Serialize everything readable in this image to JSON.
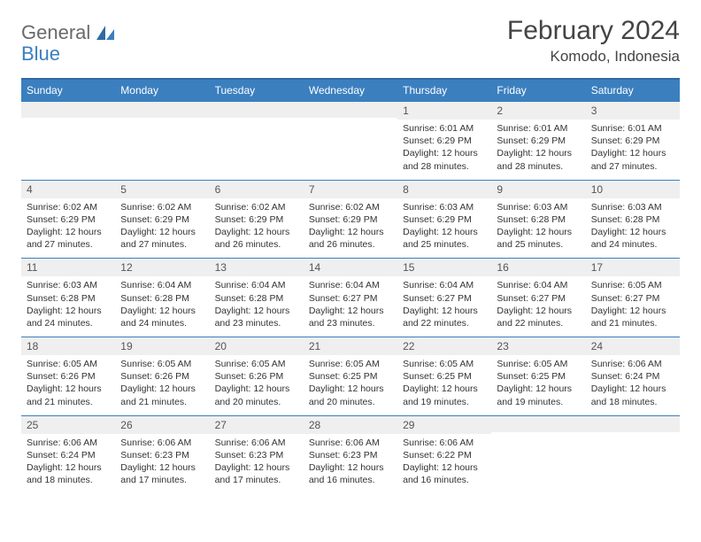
{
  "logo": {
    "text_general": "General",
    "text_blue": "Blue"
  },
  "title": "February 2024",
  "subtitle": "Komodo, Indonesia",
  "colors": {
    "header_bg": "#3b7fbf",
    "header_border_top": "#2f6aa3",
    "row_border": "#3b7fbf",
    "daynum_bg": "#efefef",
    "page_bg": "#ffffff",
    "text": "#333333",
    "title_text": "#444444",
    "logo_gray": "#6a6a6a",
    "logo_blue": "#3b7fbf"
  },
  "typography": {
    "title_fontsize": 30,
    "subtitle_fontsize": 17,
    "header_fontsize": 12,
    "daynum_fontsize": 12,
    "content_fontsize": 10.5,
    "font_family": "Arial"
  },
  "weekdays": [
    "Sunday",
    "Monday",
    "Tuesday",
    "Wednesday",
    "Thursday",
    "Friday",
    "Saturday"
  ],
  "weeks": [
    [
      {
        "day": "",
        "sunrise": "",
        "sunset": "",
        "daylight": ""
      },
      {
        "day": "",
        "sunrise": "",
        "sunset": "",
        "daylight": ""
      },
      {
        "day": "",
        "sunrise": "",
        "sunset": "",
        "daylight": ""
      },
      {
        "day": "",
        "sunrise": "",
        "sunset": "",
        "daylight": ""
      },
      {
        "day": "1",
        "sunrise": "Sunrise: 6:01 AM",
        "sunset": "Sunset: 6:29 PM",
        "daylight": "Daylight: 12 hours and 28 minutes."
      },
      {
        "day": "2",
        "sunrise": "Sunrise: 6:01 AM",
        "sunset": "Sunset: 6:29 PM",
        "daylight": "Daylight: 12 hours and 28 minutes."
      },
      {
        "day": "3",
        "sunrise": "Sunrise: 6:01 AM",
        "sunset": "Sunset: 6:29 PM",
        "daylight": "Daylight: 12 hours and 27 minutes."
      }
    ],
    [
      {
        "day": "4",
        "sunrise": "Sunrise: 6:02 AM",
        "sunset": "Sunset: 6:29 PM",
        "daylight": "Daylight: 12 hours and 27 minutes."
      },
      {
        "day": "5",
        "sunrise": "Sunrise: 6:02 AM",
        "sunset": "Sunset: 6:29 PM",
        "daylight": "Daylight: 12 hours and 27 minutes."
      },
      {
        "day": "6",
        "sunrise": "Sunrise: 6:02 AM",
        "sunset": "Sunset: 6:29 PM",
        "daylight": "Daylight: 12 hours and 26 minutes."
      },
      {
        "day": "7",
        "sunrise": "Sunrise: 6:02 AM",
        "sunset": "Sunset: 6:29 PM",
        "daylight": "Daylight: 12 hours and 26 minutes."
      },
      {
        "day": "8",
        "sunrise": "Sunrise: 6:03 AM",
        "sunset": "Sunset: 6:29 PM",
        "daylight": "Daylight: 12 hours and 25 minutes."
      },
      {
        "day": "9",
        "sunrise": "Sunrise: 6:03 AM",
        "sunset": "Sunset: 6:28 PM",
        "daylight": "Daylight: 12 hours and 25 minutes."
      },
      {
        "day": "10",
        "sunrise": "Sunrise: 6:03 AM",
        "sunset": "Sunset: 6:28 PM",
        "daylight": "Daylight: 12 hours and 24 minutes."
      }
    ],
    [
      {
        "day": "11",
        "sunrise": "Sunrise: 6:03 AM",
        "sunset": "Sunset: 6:28 PM",
        "daylight": "Daylight: 12 hours and 24 minutes."
      },
      {
        "day": "12",
        "sunrise": "Sunrise: 6:04 AM",
        "sunset": "Sunset: 6:28 PM",
        "daylight": "Daylight: 12 hours and 24 minutes."
      },
      {
        "day": "13",
        "sunrise": "Sunrise: 6:04 AM",
        "sunset": "Sunset: 6:28 PM",
        "daylight": "Daylight: 12 hours and 23 minutes."
      },
      {
        "day": "14",
        "sunrise": "Sunrise: 6:04 AM",
        "sunset": "Sunset: 6:27 PM",
        "daylight": "Daylight: 12 hours and 23 minutes."
      },
      {
        "day": "15",
        "sunrise": "Sunrise: 6:04 AM",
        "sunset": "Sunset: 6:27 PM",
        "daylight": "Daylight: 12 hours and 22 minutes."
      },
      {
        "day": "16",
        "sunrise": "Sunrise: 6:04 AM",
        "sunset": "Sunset: 6:27 PM",
        "daylight": "Daylight: 12 hours and 22 minutes."
      },
      {
        "day": "17",
        "sunrise": "Sunrise: 6:05 AM",
        "sunset": "Sunset: 6:27 PM",
        "daylight": "Daylight: 12 hours and 21 minutes."
      }
    ],
    [
      {
        "day": "18",
        "sunrise": "Sunrise: 6:05 AM",
        "sunset": "Sunset: 6:26 PM",
        "daylight": "Daylight: 12 hours and 21 minutes."
      },
      {
        "day": "19",
        "sunrise": "Sunrise: 6:05 AM",
        "sunset": "Sunset: 6:26 PM",
        "daylight": "Daylight: 12 hours and 21 minutes."
      },
      {
        "day": "20",
        "sunrise": "Sunrise: 6:05 AM",
        "sunset": "Sunset: 6:26 PM",
        "daylight": "Daylight: 12 hours and 20 minutes."
      },
      {
        "day": "21",
        "sunrise": "Sunrise: 6:05 AM",
        "sunset": "Sunset: 6:25 PM",
        "daylight": "Daylight: 12 hours and 20 minutes."
      },
      {
        "day": "22",
        "sunrise": "Sunrise: 6:05 AM",
        "sunset": "Sunset: 6:25 PM",
        "daylight": "Daylight: 12 hours and 19 minutes."
      },
      {
        "day": "23",
        "sunrise": "Sunrise: 6:05 AM",
        "sunset": "Sunset: 6:25 PM",
        "daylight": "Daylight: 12 hours and 19 minutes."
      },
      {
        "day": "24",
        "sunrise": "Sunrise: 6:06 AM",
        "sunset": "Sunset: 6:24 PM",
        "daylight": "Daylight: 12 hours and 18 minutes."
      }
    ],
    [
      {
        "day": "25",
        "sunrise": "Sunrise: 6:06 AM",
        "sunset": "Sunset: 6:24 PM",
        "daylight": "Daylight: 12 hours and 18 minutes."
      },
      {
        "day": "26",
        "sunrise": "Sunrise: 6:06 AM",
        "sunset": "Sunset: 6:23 PM",
        "daylight": "Daylight: 12 hours and 17 minutes."
      },
      {
        "day": "27",
        "sunrise": "Sunrise: 6:06 AM",
        "sunset": "Sunset: 6:23 PM",
        "daylight": "Daylight: 12 hours and 17 minutes."
      },
      {
        "day": "28",
        "sunrise": "Sunrise: 6:06 AM",
        "sunset": "Sunset: 6:23 PM",
        "daylight": "Daylight: 12 hours and 16 minutes."
      },
      {
        "day": "29",
        "sunrise": "Sunrise: 6:06 AM",
        "sunset": "Sunset: 6:22 PM",
        "daylight": "Daylight: 12 hours and 16 minutes."
      },
      {
        "day": "",
        "sunrise": "",
        "sunset": "",
        "daylight": ""
      },
      {
        "day": "",
        "sunrise": "",
        "sunset": "",
        "daylight": ""
      }
    ]
  ]
}
